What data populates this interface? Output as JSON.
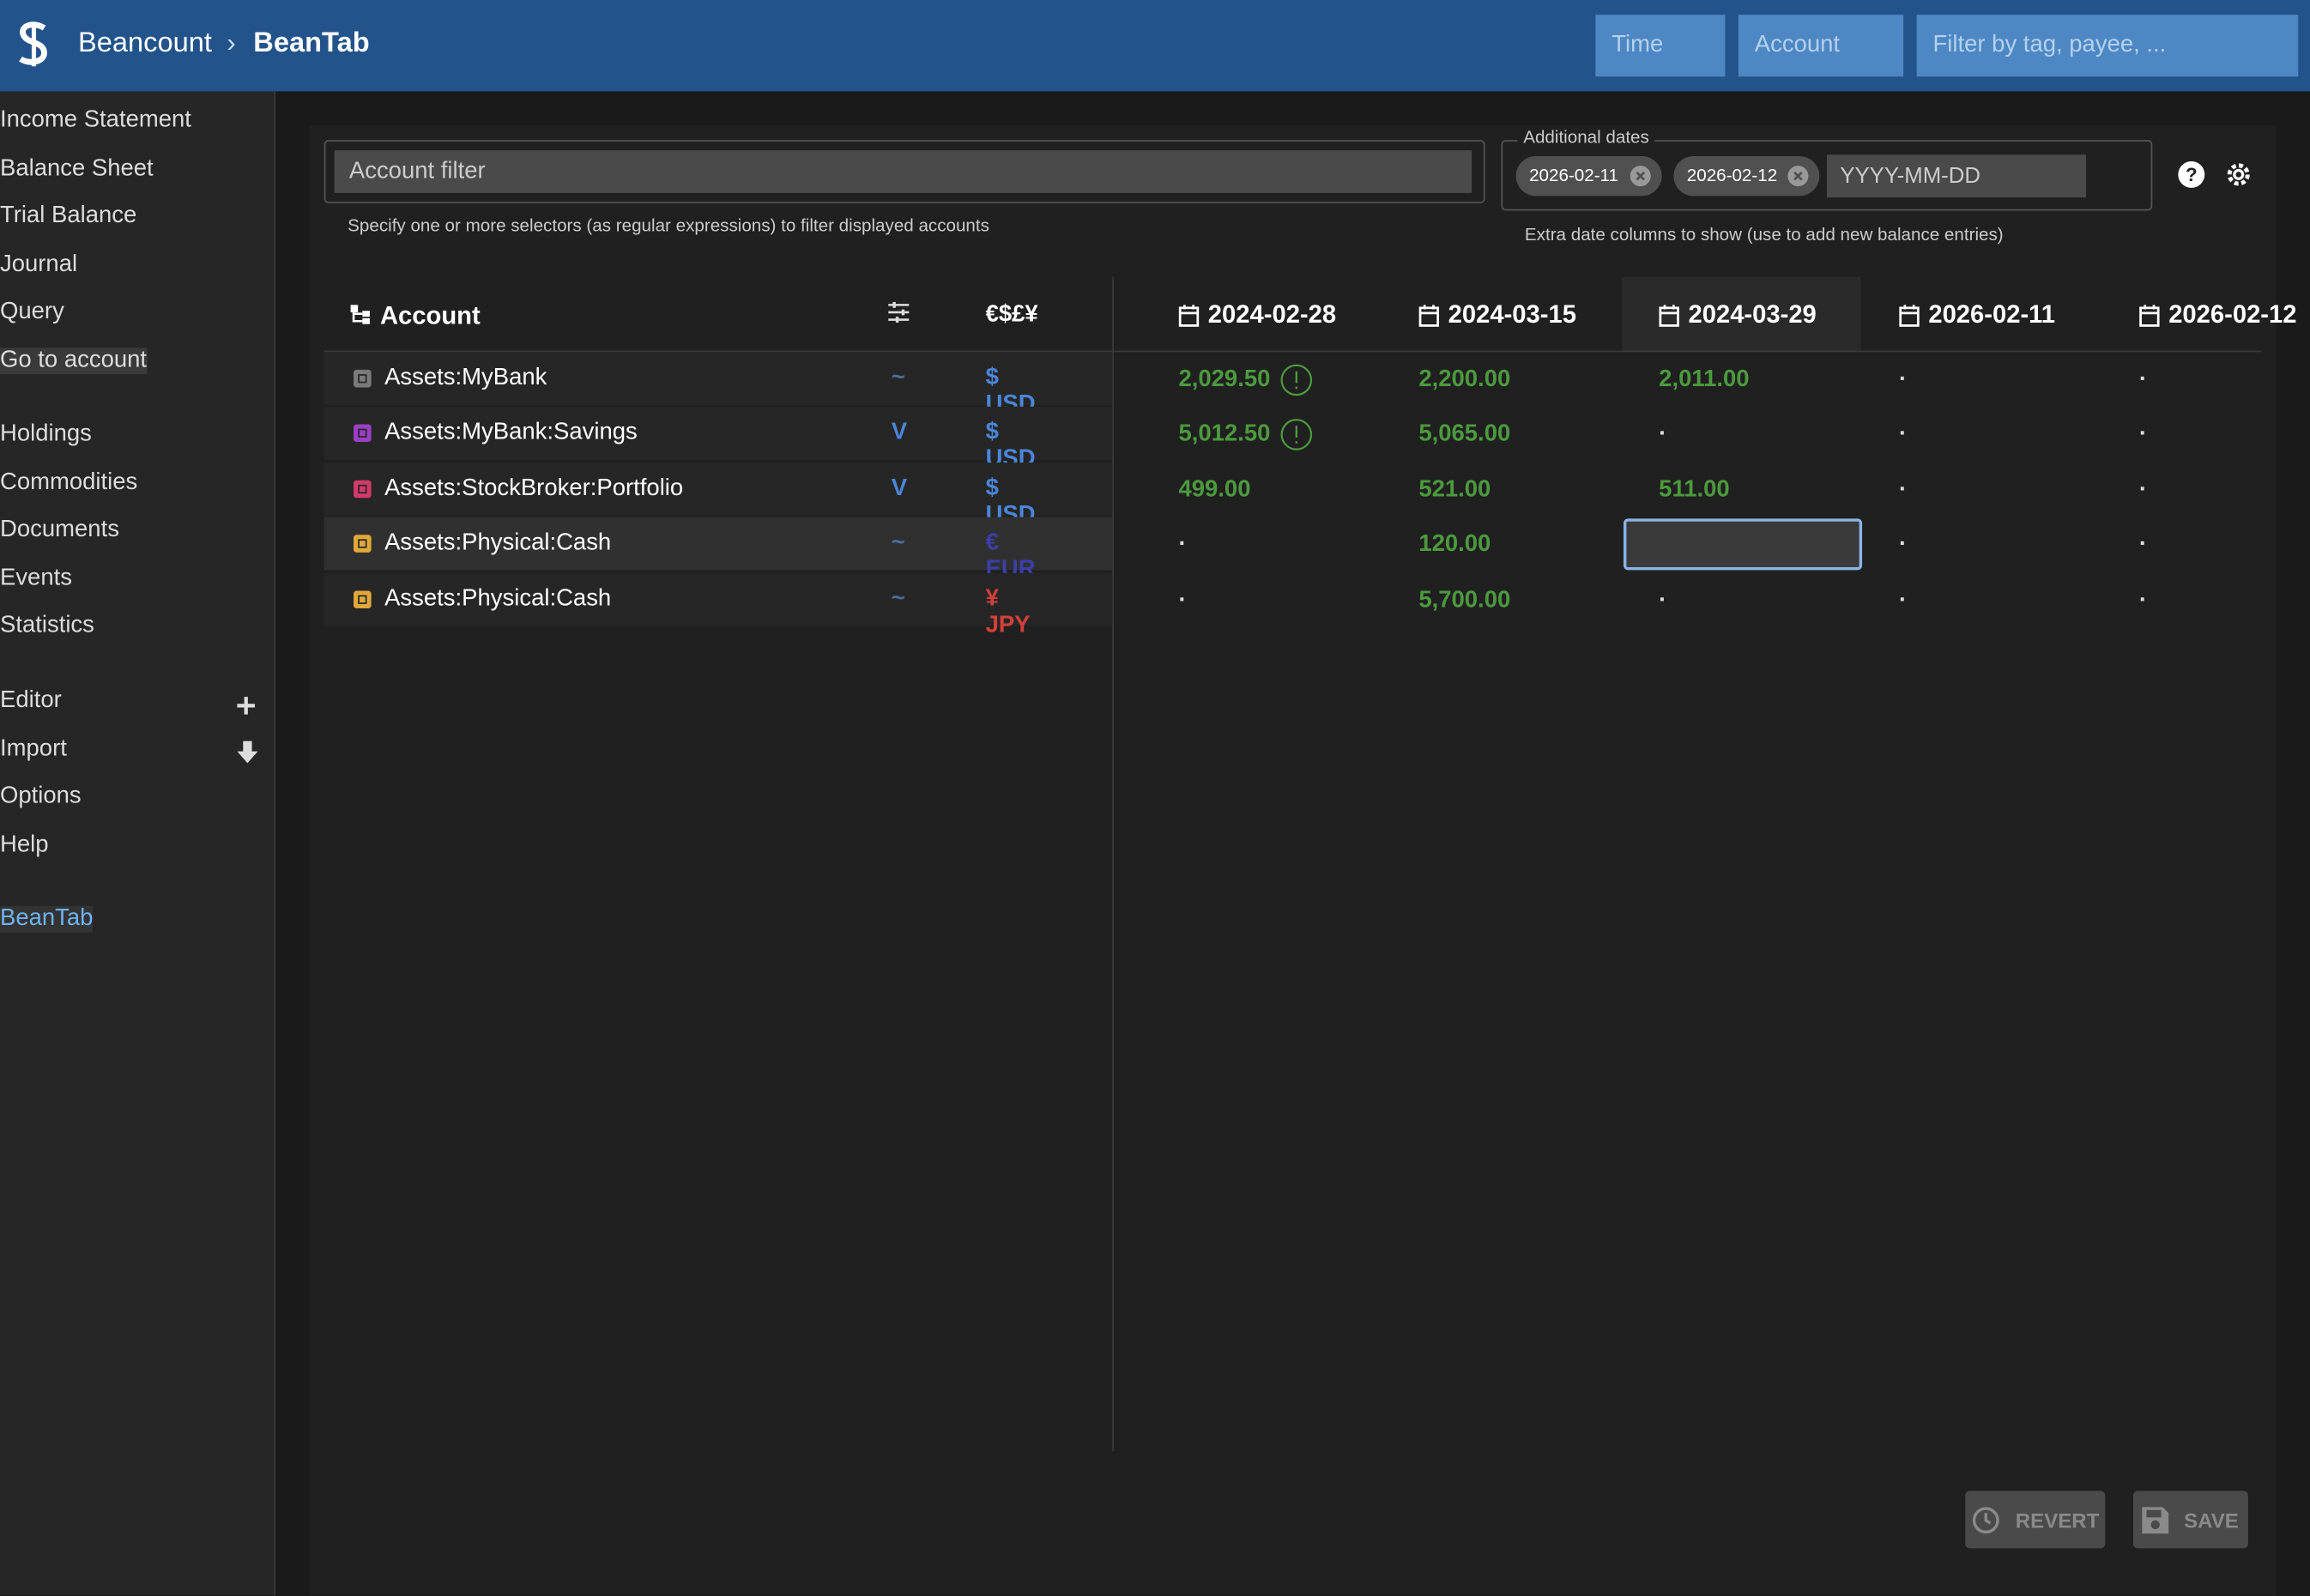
{
  "header": {
    "brand": "Beancount",
    "separator": "›",
    "page": "BeanTab",
    "filters": [
      "Time",
      "Account",
      "Filter by tag, payee, ..."
    ]
  },
  "nav": {
    "groups": [
      [
        "Income Statement",
        "Balance Sheet",
        "Trial Balance",
        "Journal",
        "Query",
        "Go to account"
      ],
      [
        "Holdings",
        "Commodities",
        "Documents",
        "Events",
        "Statistics"
      ],
      [
        "Editor",
        "Import",
        "Options",
        "Help"
      ],
      [
        "BeanTab"
      ]
    ],
    "hover_item": [
      0,
      5
    ],
    "active_item": [
      3,
      0
    ]
  },
  "toolbar": {
    "account_filter": "Account filter",
    "account_hint": "Specify one or more selectors (as regular expressions) to filter displayed accounts",
    "dates_legend": "Additional dates",
    "date_chips": [
      "2026-02-11",
      "2026-02-12"
    ],
    "date_placeholder": "YYYY-MM-DD",
    "dates_hint": "Extra date columns to show (use to add new balance entries)"
  },
  "table": {
    "account_header": "Account",
    "currency_header": "€$£¥",
    "dates": [
      "2024-02-28",
      "2024-03-15",
      "2024-03-29",
      "2026-02-11",
      "2026-02-12"
    ],
    "highlighted_column": 2,
    "selected_cell": [
      3,
      2
    ],
    "rows": [
      {
        "account": "Assets:MyBank",
        "flag": "~",
        "currency": "$ USD",
        "icon_color": "#7a7a7a",
        "currency_color": "#4a86d8",
        "cells": [
          "2,029.50",
          "2,200.00",
          "2,011.00",
          "·",
          "·"
        ],
        "warnings": [
          0
        ]
      },
      {
        "account": "Assets:MyBank:Savings",
        "flag": "V",
        "currency": "$ USD",
        "icon_color": "#9b3fc4",
        "currency_color": "#4a86d8",
        "cells": [
          "5,012.50",
          "5,065.00",
          "·",
          "·",
          "·"
        ],
        "warnings": [
          0
        ]
      },
      {
        "account": "Assets:StockBroker:Portfolio",
        "flag": "V",
        "currency": "$ USD",
        "icon_color": "#d23a6a",
        "currency_color": "#4a86d8",
        "cells": [
          "499.00",
          "521.00",
          "511.00",
          "·",
          "·"
        ],
        "warnings": []
      },
      {
        "account": "Assets:Physical:Cash",
        "flag": "~",
        "currency": "€ EUR",
        "icon_color": "#e0a83a",
        "currency_color": "#3b3fa8",
        "cells": [
          "·",
          "120.00",
          null,
          "·",
          "·"
        ],
        "warnings": []
      },
      {
        "account": "Assets:Physical:Cash",
        "flag": "~",
        "currency": "¥ JPY",
        "icon_color": "#e0a83a",
        "currency_color": "#d2403a",
        "cells": [
          "·",
          "5,700.00",
          "·",
          "·",
          "·"
        ],
        "warnings": []
      }
    ]
  },
  "buttons": [
    "REVERT",
    "SAVE"
  ]
}
